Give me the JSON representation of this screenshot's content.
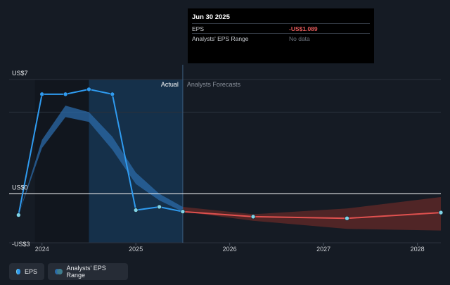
{
  "tooltip": {
    "date": "Jun 30 2025",
    "rows": [
      {
        "label": "EPS",
        "value": "-US$1.089"
      },
      {
        "label": "Analysts' EPS Range",
        "value": "No data"
      }
    ]
  },
  "labels": {
    "actual": "Actual",
    "forecast": "Analysts Forecasts"
  },
  "legend": {
    "eps": "EPS",
    "range": "Analysts' EPS Range"
  },
  "colors": {
    "background": "#151b24",
    "eps_line": "#2f9bf0",
    "forecast_line": "#e0514f",
    "range_band_actual": "#2b6aa8",
    "range_band_forecast": "#c0392b",
    "marker_fill": "#7fd3e6",
    "zero_line": "#ffffff"
  },
  "chart_data": {
    "type": "line",
    "ylim": [
      -3,
      7
    ],
    "yticks": [
      {
        "value": 7,
        "label": "US$7"
      },
      {
        "value": 0,
        "label": "US$0"
      },
      {
        "value": -3,
        "label": "-US$3"
      }
    ],
    "xlim": [
      2023.65,
      2028.25
    ],
    "xticks": [
      {
        "value": 2024,
        "label": "2024"
      },
      {
        "value": 2025,
        "label": "2025"
      },
      {
        "value": 2026,
        "label": "2026"
      },
      {
        "value": 2027,
        "label": "2027"
      },
      {
        "value": 2028,
        "label": "2028"
      }
    ],
    "actual_end": 2025.5,
    "series": [
      {
        "name": "EPS",
        "points": [
          {
            "x": 2023.75,
            "y": -1.3,
            "marker": true
          },
          {
            "x": 2024.0,
            "y": 6.1,
            "marker": true
          },
          {
            "x": 2024.25,
            "y": 6.1,
            "marker": true
          },
          {
            "x": 2024.5,
            "y": 6.4,
            "marker": true
          },
          {
            "x": 2024.75,
            "y": 6.1,
            "marker": true
          },
          {
            "x": 2025.0,
            "y": -1.0,
            "marker": true
          },
          {
            "x": 2025.25,
            "y": -0.8,
            "marker": true
          },
          {
            "x": 2025.5,
            "y": -1.089,
            "marker": true
          }
        ]
      },
      {
        "name": "Analysts Forecasts",
        "points": [
          {
            "x": 2025.5,
            "y": -1.089,
            "marker": true
          },
          {
            "x": 2026.25,
            "y": -1.4,
            "marker": true
          },
          {
            "x": 2027.25,
            "y": -1.5,
            "marker": true
          },
          {
            "x": 2028.25,
            "y": -1.15,
            "marker": true
          }
        ]
      }
    ],
    "range_band": {
      "x": [
        2023.75,
        2024.0,
        2024.25,
        2024.5,
        2024.75,
        2025.0,
        2025.25,
        2025.5,
        2026.25,
        2027.25,
        2028.25
      ],
      "low": [
        -1.3,
        2.8,
        4.7,
        4.4,
        2.7,
        0.6,
        -0.4,
        -1.089,
        -1.65,
        -2.15,
        -2.25
      ],
      "high": [
        -1.3,
        3.3,
        5.4,
        5.0,
        3.5,
        1.3,
        0.0,
        -0.8,
        -1.25,
        -0.9,
        -0.2
      ]
    }
  }
}
